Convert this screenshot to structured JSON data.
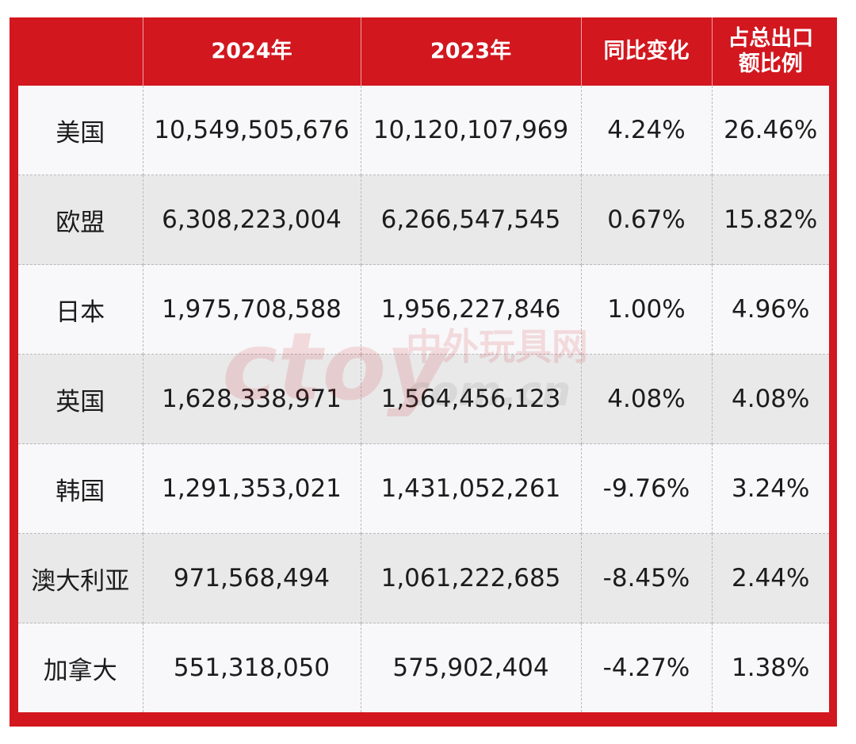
{
  "table": {
    "headers": [
      "",
      "2024年",
      "2023年",
      "同比变化",
      "占总出口额比例"
    ],
    "rows": [
      {
        "region": "美国",
        "y2024": "10,549,505,676",
        "y2023": "10,120,107,969",
        "yoy": "4.24%",
        "share": "26.46%"
      },
      {
        "region": "欧盟",
        "y2024": "6,308,223,004",
        "y2023": "6,266,547,545",
        "yoy": "0.67%",
        "share": "15.82%"
      },
      {
        "region": "日本",
        "y2024": "1,975,708,588",
        "y2023": "1,956,227,846",
        "yoy": "1.00%",
        "share": "4.96%"
      },
      {
        "region": "英国",
        "y2024": "1,628,338,971",
        "y2023": "1,564,456,123",
        "yoy": "4.08%",
        "share": "4.08%"
      },
      {
        "region": "韩国",
        "y2024": "1,291,353,021",
        "y2023": "1,431,052,261",
        "yoy": "-9.76%",
        "share": "3.24%"
      },
      {
        "region": "澳大利亚",
        "y2024": "971,568,494",
        "y2023": "1,061,222,685",
        "yoy": "-8.45%",
        "share": "2.44%"
      },
      {
        "region": "加拿大",
        "y2024": "551,318,050",
        "y2023": "575,902,404",
        "yoy": "-4.27%",
        "share": "1.38%"
      }
    ]
  },
  "watermark": {
    "logo": "ctoy",
    "cn_text": "中外玩具网",
    "domain": "com.cn"
  },
  "colors": {
    "header_red": "#d2171f",
    "row_shade": "#e9e9ea",
    "row_plain": "#f8f8fa",
    "text": "#1c1c1c"
  }
}
